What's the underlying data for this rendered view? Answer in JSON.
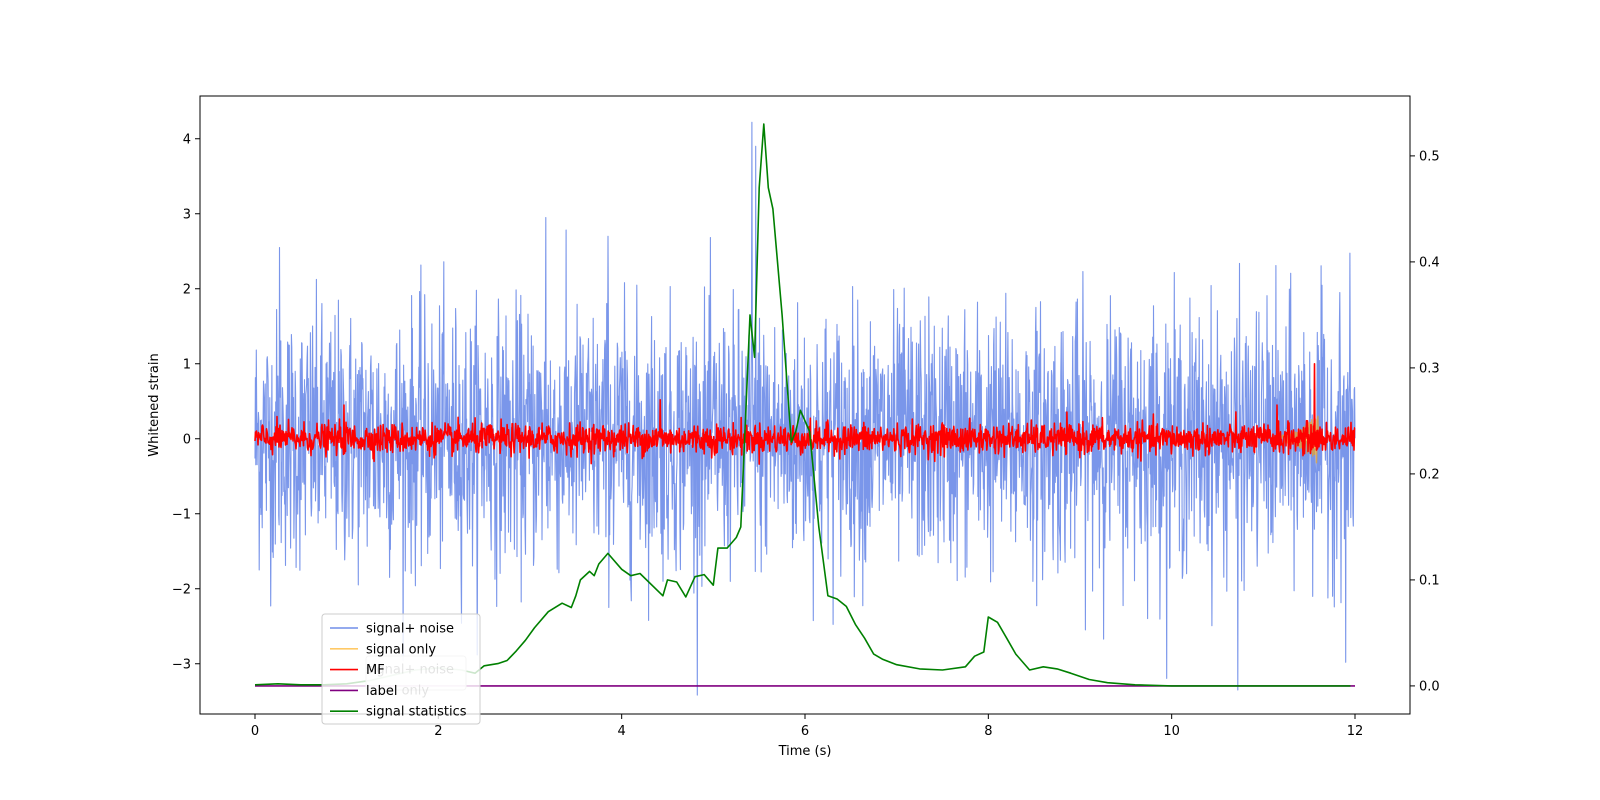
{
  "chart_data": {
    "type": "line",
    "title": "",
    "xlabel": "Time (s)",
    "ylabel": "Whitened strain",
    "y2label": "",
    "xlim": [
      -0.6,
      12.6
    ],
    "ylim": [
      -3.67,
      4.57
    ],
    "y2lim": [
      -0.0265,
      0.5565
    ],
    "xticks": [
      0,
      2,
      4,
      6,
      8,
      10,
      12
    ],
    "yticks": [
      -3,
      -2,
      -1,
      0,
      1,
      2,
      3,
      4
    ],
    "y2ticks": [
      0.0,
      0.1,
      0.2,
      0.3,
      0.4,
      0.5
    ],
    "grid": false,
    "legend_position": "lower-left",
    "series": [
      {
        "name": "signal+ noise",
        "color": "#4169e1",
        "axis": "left",
        "style": "noise",
        "x_range": [
          0,
          12
        ],
        "amplitude_std": 0.85,
        "peaks": [
          {
            "x": 5.42,
            "y": 4.22
          },
          {
            "x": 5.46,
            "y": 3.9
          },
          {
            "x": 3.17,
            "y": 2.95
          },
          {
            "x": 10.72,
            "y": -3.35
          },
          {
            "x": 11.9,
            "y": -2.98
          },
          {
            "x": 3.85,
            "y": 2.7
          },
          {
            "x": 0.27,
            "y": 2.55
          }
        ]
      },
      {
        "name": "signal only",
        "color": "#ffa500",
        "axis": "left",
        "style": "chirp",
        "x_range": [
          11.2,
          11.6
        ],
        "values_description_range": [
          -0.35,
          0.25
        ]
      },
      {
        "name": "MF",
        "color": "#ff0000",
        "axis": "left",
        "style": "noise",
        "x_range": [
          0,
          12
        ],
        "amplitude_std": 0.1,
        "peaks": [
          {
            "x": 11.56,
            "y": 1.0
          },
          {
            "x": 4.42,
            "y": 0.52
          },
          {
            "x": 0.97,
            "y": 0.45
          },
          {
            "x": 11.15,
            "y": 0.45
          }
        ]
      },
      {
        "name": "label",
        "color": "#800080",
        "axis": "right",
        "style": "line",
        "x": [
          0,
          12
        ],
        "values": [
          0.0,
          0.0
        ]
      },
      {
        "name": "signal statistics",
        "color": "#008000",
        "axis": "right",
        "style": "line",
        "x": [
          0,
          0.25,
          0.5,
          0.75,
          1.0,
          1.25,
          1.5,
          1.75,
          2.0,
          2.25,
          2.4,
          2.5,
          2.65,
          2.75,
          2.85,
          2.95,
          3.05,
          3.2,
          3.35,
          3.45,
          3.5,
          3.55,
          3.65,
          3.7,
          3.75,
          3.85,
          4.0,
          4.1,
          4.2,
          4.45,
          4.5,
          4.6,
          4.7,
          4.8,
          4.9,
          5.0,
          5.05,
          5.15,
          5.25,
          5.3,
          5.4,
          5.45,
          5.5,
          5.55,
          5.6,
          5.65,
          5.75,
          5.85,
          5.9,
          5.95,
          6.05,
          6.15,
          6.25,
          6.35,
          6.45,
          6.55,
          6.65,
          6.75,
          6.85,
          7.0,
          7.25,
          7.5,
          7.75,
          7.85,
          7.95,
          8.0,
          8.1,
          8.2,
          8.3,
          8.45,
          8.6,
          8.75,
          8.9,
          9.1,
          9.3,
          9.6,
          10.0,
          10.5,
          11.0,
          11.5,
          11.95
        ],
        "values": [
          0.001,
          0.002,
          0.001,
          0.001,
          0.002,
          0.005,
          0.01,
          0.015,
          0.017,
          0.015,
          0.012,
          0.019,
          0.021,
          0.024,
          0.033,
          0.043,
          0.055,
          0.07,
          0.078,
          0.074,
          0.085,
          0.1,
          0.108,
          0.104,
          0.115,
          0.125,
          0.11,
          0.104,
          0.106,
          0.085,
          0.1,
          0.098,
          0.084,
          0.103,
          0.105,
          0.095,
          0.13,
          0.13,
          0.14,
          0.15,
          0.35,
          0.31,
          0.47,
          0.53,
          0.47,
          0.45,
          0.35,
          0.23,
          0.24,
          0.26,
          0.24,
          0.15,
          0.085,
          0.082,
          0.075,
          0.058,
          0.045,
          0.03,
          0.025,
          0.02,
          0.016,
          0.015,
          0.018,
          0.028,
          0.032,
          0.065,
          0.06,
          0.045,
          0.03,
          0.015,
          0.018,
          0.016,
          0.012,
          0.006,
          0.003,
          0.001,
          0.0,
          0.0,
          0.0,
          0.0,
          0.0
        ]
      }
    ],
    "legend_entries": [
      "signal+ noise",
      "signal only",
      "MF",
      "label",
      "signal statistics"
    ],
    "legend_overlap_artifacts": [
      "signal+ noise",
      "label only"
    ]
  }
}
